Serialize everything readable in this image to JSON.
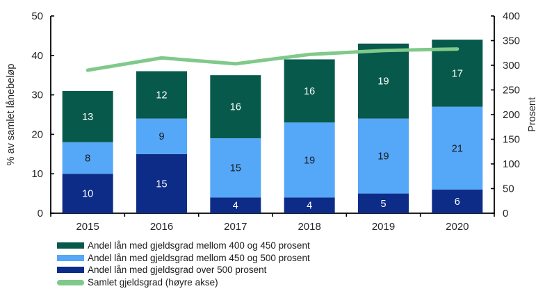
{
  "chart_data": {
    "type": "combo",
    "subtypes": [
      "stacked-bar",
      "line"
    ],
    "categories": [
      "2015",
      "2016",
      "2017",
      "2018",
      "2019",
      "2020"
    ],
    "bar_series": [
      {
        "name": "Andel lån med gjeldsgrad over 500 prosent",
        "color": "#0d2c87",
        "label_color": "#ffffff",
        "values": [
          10,
          15,
          4,
          4,
          5,
          6
        ]
      },
      {
        "name": "Andel lån med gjeldsgrad mellom 450 og 500 prosent",
        "color": "#55a7f7",
        "label_color": "#1a1a1a",
        "values": [
          8,
          9,
          15,
          19,
          19,
          21
        ]
      },
      {
        "name": "Andel lån med gjeldsgrad mellom 400 og 450 prosent",
        "color": "#075a4b",
        "label_color": "#ffffff",
        "values": [
          13,
          12,
          16,
          16,
          19,
          17
        ]
      }
    ],
    "line_series": {
      "name": "Samlet gjeldsgrad (høyre akse)",
      "color": "#80c98a",
      "axis": "right",
      "values": [
        290,
        315,
        303,
        322,
        330,
        333
      ]
    },
    "left_axis": {
      "title": "% av samlet lånebeløp",
      "min": 0,
      "max": 50,
      "tick_step": 10,
      "ticks": [
        0,
        10,
        20,
        30,
        40,
        50
      ]
    },
    "right_axis": {
      "title": "Prosent",
      "min": 0,
      "max": 400,
      "tick_step": 50,
      "ticks": [
        0,
        50,
        100,
        150,
        200,
        250,
        300,
        350,
        400
      ]
    },
    "grid": false,
    "legend_position": "bottom-left",
    "axis_color": "#000000"
  },
  "legend": {
    "items": [
      {
        "label": "Andel lån med gjeldsgrad mellom 400 og 450 prosent",
        "color": "#075a4b",
        "shape": "rect"
      },
      {
        "label": "Andel lån med gjeldsgrad mellom 450 og 500 prosent",
        "color": "#55a7f7",
        "shape": "rect"
      },
      {
        "label": "Andel lån med gjeldsgrad over 500 prosent",
        "color": "#0d2c87",
        "shape": "rect"
      },
      {
        "label": "Samlet gjeldsgrad (høyre akse)",
        "color": "#80c98a",
        "shape": "line"
      }
    ]
  }
}
